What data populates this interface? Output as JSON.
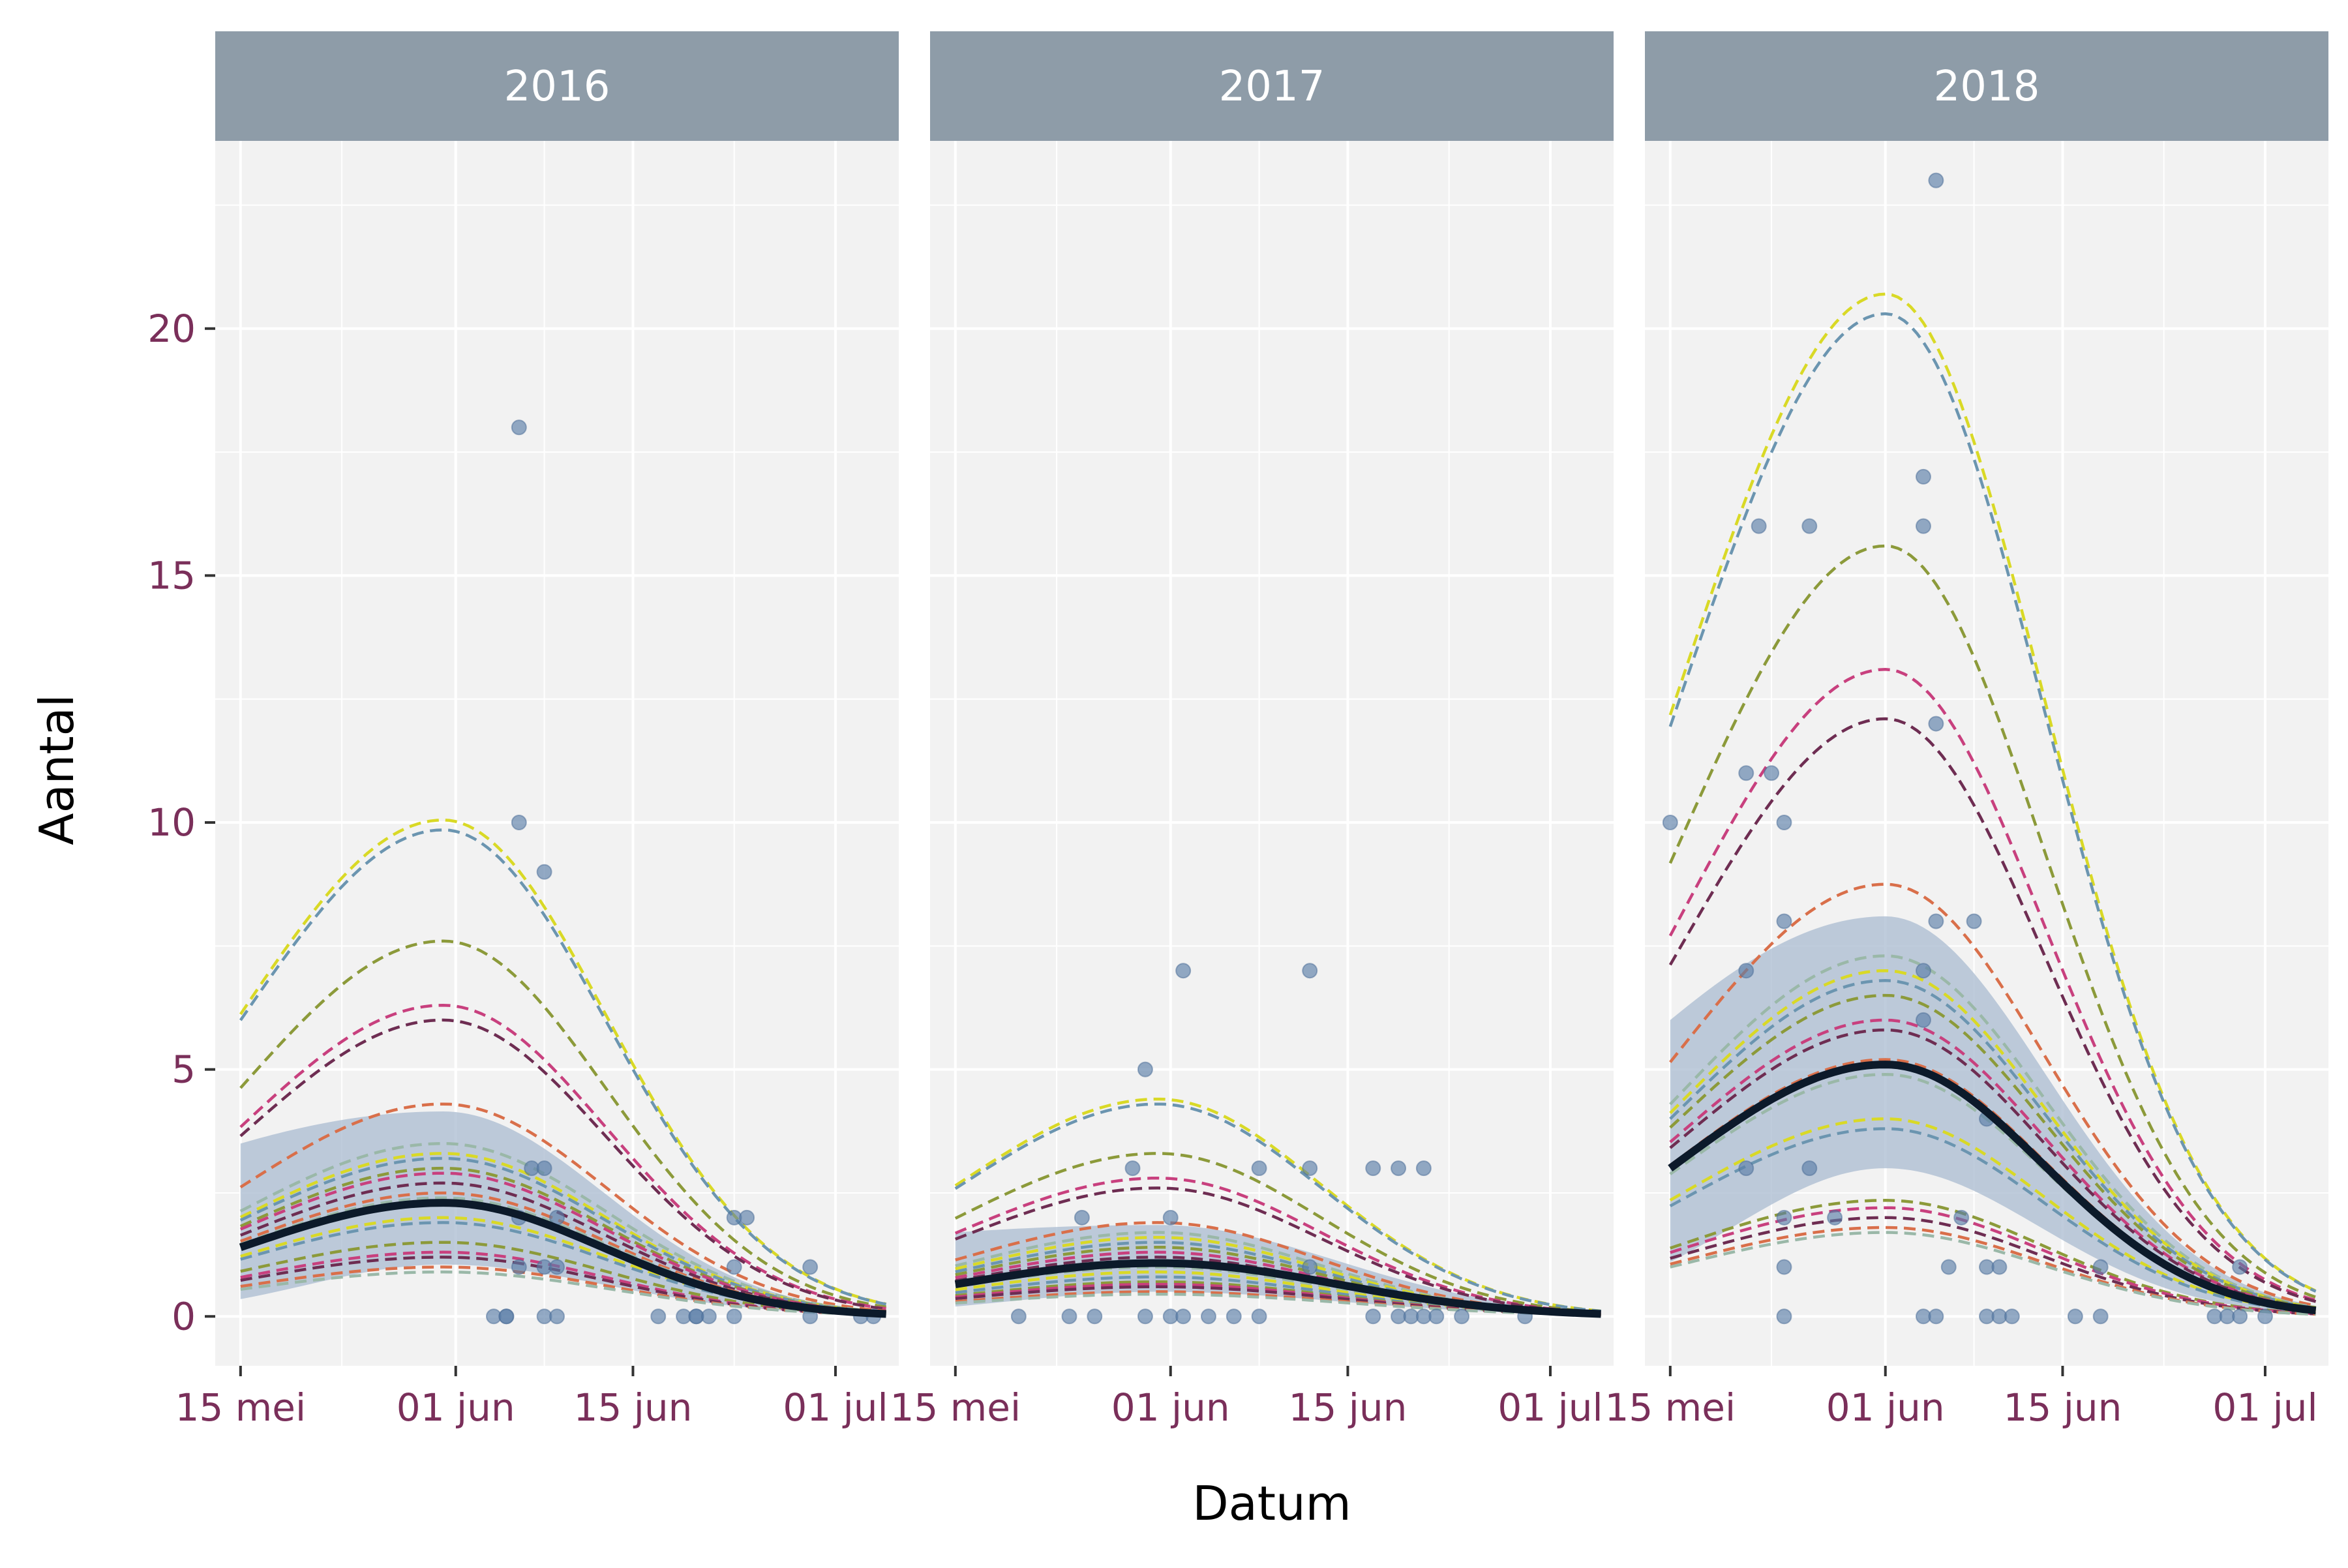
{
  "chart_data": {
    "type": "line",
    "xlabel": "Datum",
    "ylabel": "Aantal",
    "ylim": [
      -1.0,
      23.8
    ],
    "xlim_days": [
      -2,
      52
    ],
    "y_ticks": [
      0,
      5,
      10,
      15,
      20
    ],
    "y_tick_labels": [
      "0",
      "5",
      "10",
      "15",
      "20"
    ],
    "x_ticks": [
      {
        "label": "15 mei",
        "date": "2000-05-15"
      },
      {
        "label": "01 jun",
        "date": "2000-06-01"
      },
      {
        "label": "15 jun",
        "date": "2000-06-15"
      },
      {
        "label": "01 jul",
        "date": "2000-07-01"
      }
    ],
    "x_minor_dates": [
      "2000-05-23",
      "2000-06-08",
      "2000-06-23"
    ],
    "colors": {
      "panel_bg": "#f2f2f2",
      "grid": "#ffffff",
      "strip_bg": "#8e9ca8",
      "band": "#a9bbd0",
      "mean_line": "#0c1a2a",
      "points": "#5b7ea8",
      "tick_label": "#7a2f5a",
      "dashed_palette": [
        "#d9d926",
        "#6b95b0",
        "#8c9a3a",
        "#c8407e",
        "#6e2d52",
        "#d96f4a",
        "#9ab8a8"
      ]
    },
    "facets": [
      {
        "label": "2016",
        "mean": {
          "peak_date": "2000-05-31",
          "peak": 2.3,
          "start_date": "2000-05-15",
          "start": 1.4,
          "end_date": "2000-07-05",
          "end": 0.05
        },
        "band": {
          "lower_start": 0.35,
          "lower_peak": 1.05,
          "upper_start": 3.5,
          "upper_peak": 4.15
        },
        "dashed_peaks": [
          10.05,
          9.85,
          7.6,
          6.3,
          6.0,
          4.3,
          3.5,
          3.3,
          3.2,
          3.0,
          2.9,
          2.7,
          2.5,
          2.4,
          2.0,
          1.9,
          1.5,
          1.3,
          1.2,
          1.0,
          0.9
        ],
        "points": [
          {
            "date": "2000-06-06",
            "value": 18
          },
          {
            "date": "2000-06-06",
            "value": 10
          },
          {
            "date": "2000-06-08",
            "value": 9
          },
          {
            "date": "2000-06-07",
            "value": 3
          },
          {
            "date": "2000-06-08",
            "value": 3
          },
          {
            "date": "2000-06-09",
            "value": 2
          },
          {
            "date": "2000-06-06",
            "value": 2
          },
          {
            "date": "2000-06-06",
            "value": 1
          },
          {
            "date": "2000-06-08",
            "value": 1
          },
          {
            "date": "2000-06-09",
            "value": 1
          },
          {
            "date": "2000-06-04",
            "value": 0
          },
          {
            "date": "2000-06-05",
            "value": 0
          },
          {
            "date": "2000-06-05",
            "value": 0
          },
          {
            "date": "2000-06-08",
            "value": 0
          },
          {
            "date": "2000-06-09",
            "value": 0
          },
          {
            "date": "2000-06-17",
            "value": 0
          },
          {
            "date": "2000-06-19",
            "value": 0
          },
          {
            "date": "2000-06-20",
            "value": 0
          },
          {
            "date": "2000-06-20",
            "value": 0
          },
          {
            "date": "2000-06-21",
            "value": 0
          },
          {
            "date": "2000-06-23",
            "value": 0
          },
          {
            "date": "2000-06-23",
            "value": 2
          },
          {
            "date": "2000-06-24",
            "value": 2
          },
          {
            "date": "2000-06-23",
            "value": 1
          },
          {
            "date": "2000-06-29",
            "value": 1
          },
          {
            "date": "2000-06-29",
            "value": 0
          },
          {
            "date": "2000-07-03",
            "value": 0
          },
          {
            "date": "2000-07-04",
            "value": 0
          }
        ]
      },
      {
        "label": "2017",
        "mean": {
          "peak_date": "2000-05-31",
          "peak": 1.08,
          "start_date": "2000-05-15",
          "start": 0.65,
          "end_date": "2000-07-05",
          "end": 0.05
        },
        "band": {
          "lower_start": 0.2,
          "lower_peak": 0.5,
          "upper_start": 1.7,
          "upper_peak": 1.85
        },
        "dashed_peaks": [
          4.4,
          4.3,
          3.3,
          2.8,
          2.6,
          1.9,
          1.7,
          1.6,
          1.5,
          1.4,
          1.3,
          1.2,
          1.1,
          1.0,
          0.9,
          0.8,
          0.7,
          0.65,
          0.6,
          0.5,
          0.45
        ],
        "points": [
          {
            "date": "2000-06-02",
            "value": 7
          },
          {
            "date": "2000-06-12",
            "value": 7
          },
          {
            "date": "2000-05-30",
            "value": 5
          },
          {
            "date": "2000-05-29",
            "value": 3
          },
          {
            "date": "2000-06-08",
            "value": 3
          },
          {
            "date": "2000-06-12",
            "value": 3
          },
          {
            "date": "2000-06-17",
            "value": 3
          },
          {
            "date": "2000-06-19",
            "value": 3
          },
          {
            "date": "2000-06-21",
            "value": 3
          },
          {
            "date": "2000-05-25",
            "value": 2
          },
          {
            "date": "2000-06-01",
            "value": 2
          },
          {
            "date": "2000-06-12",
            "value": 1
          },
          {
            "date": "2000-05-20",
            "value": 0
          },
          {
            "date": "2000-05-24",
            "value": 0
          },
          {
            "date": "2000-05-26",
            "value": 0
          },
          {
            "date": "2000-05-30",
            "value": 0
          },
          {
            "date": "2000-06-01",
            "value": 0
          },
          {
            "date": "2000-06-02",
            "value": 0
          },
          {
            "date": "2000-06-04",
            "value": 0
          },
          {
            "date": "2000-06-06",
            "value": 0
          },
          {
            "date": "2000-06-08",
            "value": 0
          },
          {
            "date": "2000-06-17",
            "value": 0
          },
          {
            "date": "2000-06-19",
            "value": 0
          },
          {
            "date": "2000-06-20",
            "value": 0
          },
          {
            "date": "2000-06-21",
            "value": 0
          },
          {
            "date": "2000-06-22",
            "value": 0
          },
          {
            "date": "2000-06-24",
            "value": 0
          },
          {
            "date": "2000-06-29",
            "value": 0
          }
        ]
      },
      {
        "label": "2018",
        "mean": {
          "peak_date": "2000-06-01",
          "peak": 5.1,
          "start_date": "2000-05-15",
          "start": 3.0,
          "end_date": "2000-07-05",
          "end": 0.12
        },
        "band": {
          "lower_start": 1.1,
          "lower_peak": 3.0,
          "upper_start": 6.0,
          "upper_peak": 8.1
        },
        "dashed_peaks": [
          20.7,
          20.3,
          15.6,
          13.1,
          12.1,
          8.75,
          7.3,
          7.0,
          6.8,
          6.5,
          6.0,
          5.8,
          5.2,
          4.9,
          4.0,
          3.8,
          2.35,
          2.2,
          2.0,
          1.8,
          1.7
        ],
        "points": [
          {
            "date": "2000-06-05",
            "value": 23
          },
          {
            "date": "2000-06-04",
            "value": 17
          },
          {
            "date": "2000-05-22",
            "value": 16
          },
          {
            "date": "2000-05-26",
            "value": 16
          },
          {
            "date": "2000-06-04",
            "value": 16
          },
          {
            "date": "2000-05-15",
            "value": 10
          },
          {
            "date": "2000-05-24",
            "value": 10
          },
          {
            "date": "2000-05-21",
            "value": 11
          },
          {
            "date": "2000-05-23",
            "value": 11
          },
          {
            "date": "2000-06-05",
            "value": 12
          },
          {
            "date": "2000-05-24",
            "value": 8
          },
          {
            "date": "2000-06-05",
            "value": 8
          },
          {
            "date": "2000-06-08",
            "value": 8
          },
          {
            "date": "2000-05-21",
            "value": 7
          },
          {
            "date": "2000-06-04",
            "value": 7
          },
          {
            "date": "2000-06-04",
            "value": 6
          },
          {
            "date": "2000-06-09",
            "value": 4
          },
          {
            "date": "2000-05-21",
            "value": 3
          },
          {
            "date": "2000-05-26",
            "value": 3
          },
          {
            "date": "2000-05-24",
            "value": 2
          },
          {
            "date": "2000-05-28",
            "value": 2
          },
          {
            "date": "2000-06-07",
            "value": 2
          },
          {
            "date": "2000-05-24",
            "value": 1
          },
          {
            "date": "2000-06-06",
            "value": 1
          },
          {
            "date": "2000-06-09",
            "value": 1
          },
          {
            "date": "2000-06-10",
            "value": 1
          },
          {
            "date": "2000-06-18",
            "value": 1
          },
          {
            "date": "2000-06-29",
            "value": 1
          },
          {
            "date": "2000-05-24",
            "value": 0
          },
          {
            "date": "2000-06-04",
            "value": 0
          },
          {
            "date": "2000-06-05",
            "value": 0
          },
          {
            "date": "2000-06-09",
            "value": 0
          },
          {
            "date": "2000-06-10",
            "value": 0
          },
          {
            "date": "2000-06-11",
            "value": 0
          },
          {
            "date": "2000-06-16",
            "value": 0
          },
          {
            "date": "2000-06-18",
            "value": 0
          },
          {
            "date": "2000-06-27",
            "value": 0
          },
          {
            "date": "2000-06-28",
            "value": 0
          },
          {
            "date": "2000-06-29",
            "value": 0
          },
          {
            "date": "2000-07-01",
            "value": 0
          }
        ]
      }
    ]
  }
}
